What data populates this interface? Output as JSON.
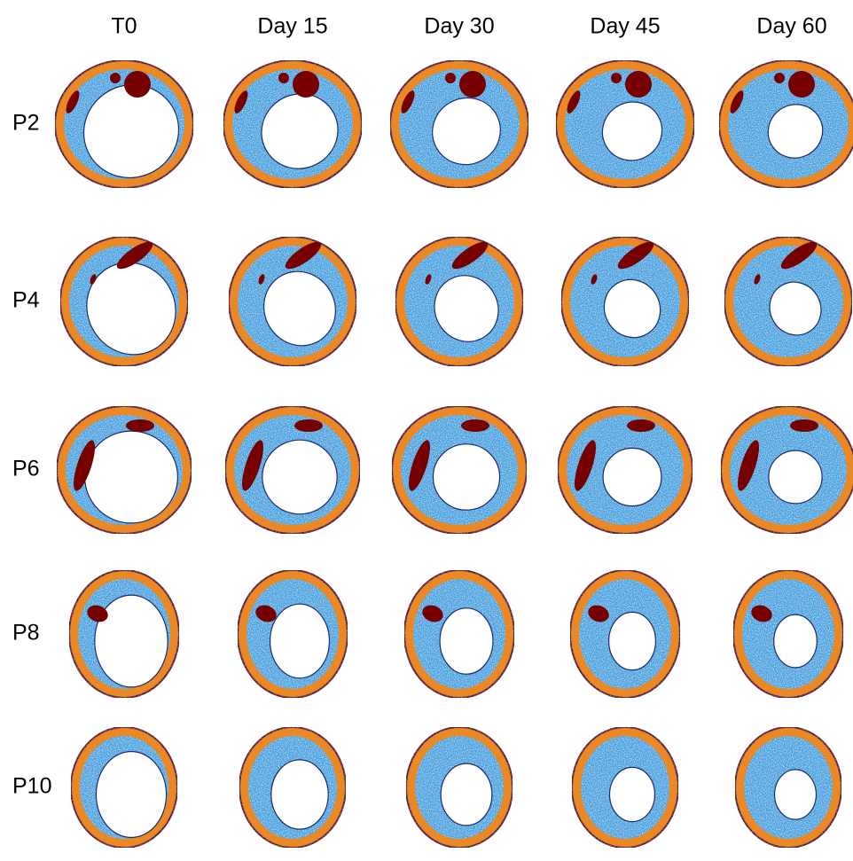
{
  "columns": [
    "T0",
    "Day 15",
    "Day 30",
    "Day 45",
    "Day 60"
  ],
  "rows": [
    "P2",
    "P4",
    "P6",
    "P8",
    "P10"
  ]
}
